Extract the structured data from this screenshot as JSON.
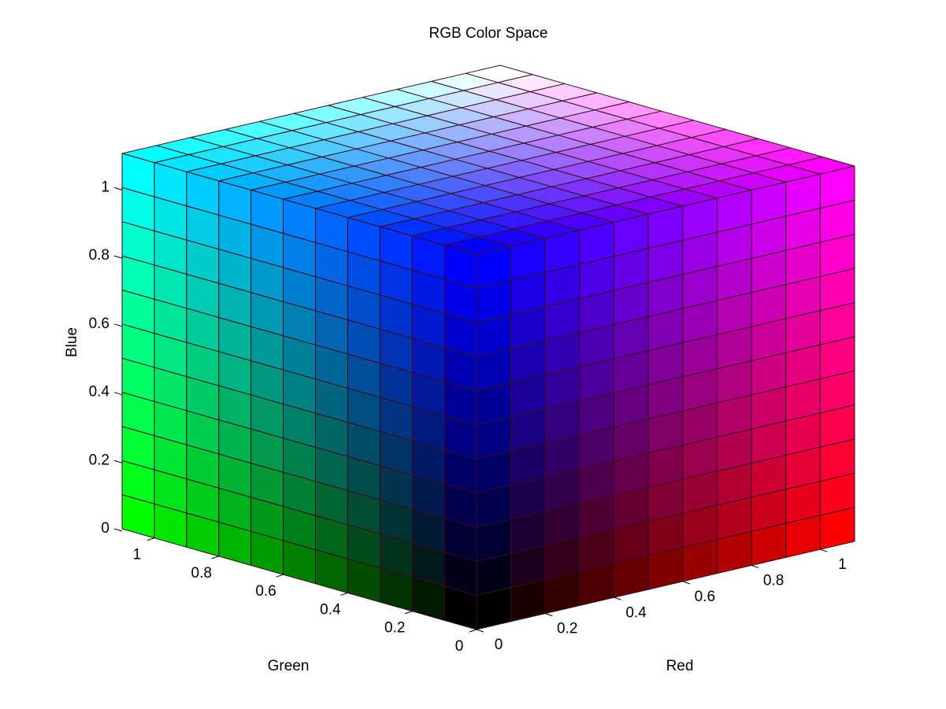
{
  "chart_data": {
    "type": "rgb-cube",
    "title": "RGB Color Space",
    "x_label": "Red",
    "y_label": "Green",
    "z_label": "Blue",
    "xlim": [
      0,
      1.1
    ],
    "ylim": [
      0,
      1.1
    ],
    "zlim": [
      0,
      1.1
    ],
    "xticks": [
      0,
      0.2,
      0.4,
      0.6,
      0.8,
      1
    ],
    "yticks": [
      0,
      0.2,
      0.4,
      0.6,
      0.8,
      1
    ],
    "zticks": [
      0,
      0.2,
      0.4,
      0.6,
      0.8,
      1
    ],
    "step": 0.1
  }
}
